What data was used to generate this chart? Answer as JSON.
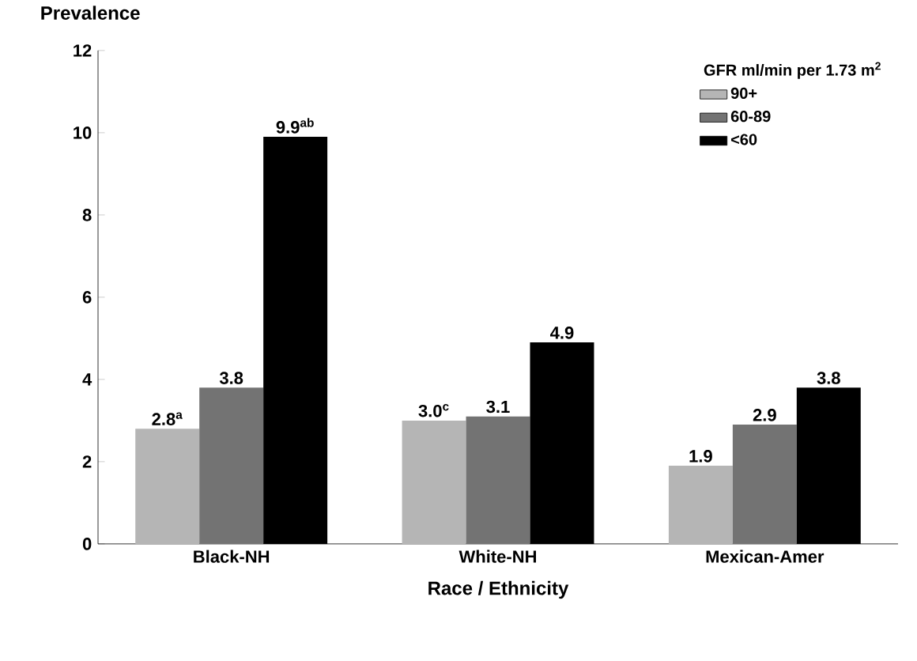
{
  "chart_data": {
    "type": "bar",
    "ylabel": "Prevalence",
    "xlabel": "Race / Ethnicity",
    "legend_title": "GFR ml/min per 1.73 m$^{2}$",
    "legend": "top right",
    "categories": [
      "Black-NH",
      "White-NH",
      "Mexican-Amer"
    ],
    "ylim": [
      0,
      12
    ],
    "yticks": [
      0,
      2,
      4,
      6,
      8,
      10,
      12
    ],
    "series": [
      {
        "name": "90+",
        "color": "#b5b5b5",
        "values": [
          2.8,
          3.0,
          1.9
        ],
        "value_labels": [
          "2.8$^{a}$",
          "3.0$^{c}$",
          "1.9"
        ]
      },
      {
        "name": "60-89",
        "color": "#737373",
        "values": [
          3.8,
          3.1,
          2.9
        ],
        "value_labels": [
          "3.8",
          "3.1",
          "2.9"
        ]
      },
      {
        "name": "<60",
        "color": "#000000",
        "values": [
          9.9,
          4.9,
          3.8
        ],
        "value_labels": [
          "9.9$^{ab}$",
          "4.9",
          "3.8"
        ]
      }
    ]
  }
}
